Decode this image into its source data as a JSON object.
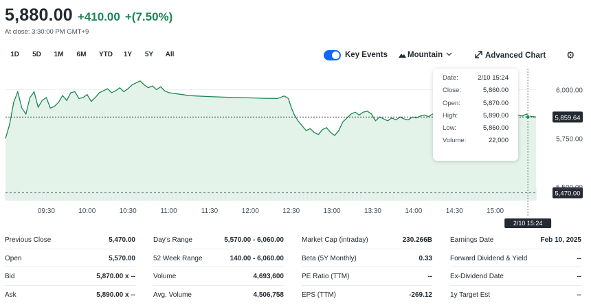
{
  "quote": {
    "price": "5,880.00",
    "change": "+410.00",
    "change_pct": "+(7.50%)",
    "close_time": "At close: 3:30:00 PM GMT+9"
  },
  "ranges": [
    {
      "label": "1D",
      "active": true
    },
    {
      "label": "5D",
      "active": false
    },
    {
      "label": "1M",
      "active": false
    },
    {
      "label": "6M",
      "active": false
    },
    {
      "label": "YTD",
      "active": false
    },
    {
      "label": "1Y",
      "active": false
    },
    {
      "label": "5Y",
      "active": false
    },
    {
      "label": "All",
      "active": false
    }
  ],
  "controls": {
    "key_events_label": "Key Events",
    "key_events_on": true,
    "chart_style_label": "Mountain",
    "advanced_chart_label": "Advanced Chart"
  },
  "colors": {
    "up": "#1b8553",
    "line": "#1b8553",
    "fill": "#e3f3ea",
    "accent": "#0f69ff",
    "crosshair": "#d0352d"
  },
  "chart_data": {
    "type": "area",
    "x_ticks": [
      "09:30",
      "10:00",
      "10:30",
      "11:00",
      "11:30",
      "12:00",
      "12:30",
      "13:00",
      "13:30",
      "14:00",
      "14:30",
      "15:00"
    ],
    "y_ticks": [
      "6,000.00",
      "5,750.00",
      "5,500.00"
    ],
    "y_range": [
      5430,
      6080
    ],
    "x_range_minutes": [
      0,
      390
    ],
    "previous_close": 5470,
    "previous_close_label": "5,470.00",
    "crosshair_value": 5859.64,
    "crosshair_value_label": "5,859.64",
    "crosshair_time_label": "2/10 15:24",
    "points": [
      [
        0,
        5750
      ],
      [
        3,
        5820
      ],
      [
        6,
        5935
      ],
      [
        9,
        5990
      ],
      [
        12,
        5905
      ],
      [
        15,
        5875
      ],
      [
        18,
        5960
      ],
      [
        21,
        5990
      ],
      [
        24,
        5910
      ],
      [
        27,
        5945
      ],
      [
        30,
        5960
      ],
      [
        33,
        5905
      ],
      [
        36,
        5915
      ],
      [
        39,
        5935
      ],
      [
        42,
        5970
      ],
      [
        45,
        5945
      ],
      [
        48,
        5985
      ],
      [
        51,
        5990
      ],
      [
        54,
        5955
      ],
      [
        57,
        5960
      ],
      [
        60,
        5975
      ],
      [
        63,
        5940
      ],
      [
        66,
        5960
      ],
      [
        69,
        5985
      ],
      [
        72,
        5995
      ],
      [
        75,
        6005
      ],
      [
        78,
        5985
      ],
      [
        81,
        5995
      ],
      [
        84,
        6010
      ],
      [
        87,
        5990
      ],
      [
        90,
        6005
      ],
      [
        93,
        6025
      ],
      [
        96,
        6035
      ],
      [
        99,
        6045
      ],
      [
        102,
        6025
      ],
      [
        105,
        6010
      ],
      [
        108,
        6020
      ],
      [
        111,
        6000
      ],
      [
        114,
        6015
      ],
      [
        117,
        5995
      ],
      [
        120,
        5985
      ],
      [
        125,
        5980
      ],
      [
        130,
        5975
      ],
      [
        135,
        5970
      ],
      [
        140,
        5968
      ],
      [
        150,
        5965
      ],
      [
        160,
        5962
      ],
      [
        170,
        5960
      ],
      [
        180,
        5958
      ],
      [
        190,
        5956
      ],
      [
        200,
        5955
      ],
      [
        205,
        5968
      ],
      [
        208,
        5955
      ],
      [
        210,
        5910
      ],
      [
        212,
        5875
      ],
      [
        215,
        5840
      ],
      [
        218,
        5815
      ],
      [
        221,
        5790
      ],
      [
        224,
        5800
      ],
      [
        227,
        5780
      ],
      [
        230,
        5770
      ],
      [
        233,
        5795
      ],
      [
        236,
        5805
      ],
      [
        239,
        5780
      ],
      [
        242,
        5765
      ],
      [
        245,
        5790
      ],
      [
        248,
        5835
      ],
      [
        251,
        5855
      ],
      [
        254,
        5875
      ],
      [
        257,
        5885
      ],
      [
        260,
        5870
      ],
      [
        263,
        5885
      ],
      [
        266,
        5890
      ],
      [
        269,
        5875
      ],
      [
        272,
        5840
      ],
      [
        275,
        5860
      ],
      [
        278,
        5850
      ],
      [
        281,
        5840
      ],
      [
        284,
        5855
      ],
      [
        287,
        5845
      ],
      [
        290,
        5860
      ],
      [
        293,
        5850
      ],
      [
        296,
        5845
      ],
      [
        299,
        5860
      ],
      [
        302,
        5855
      ],
      [
        305,
        5865
      ],
      [
        308,
        5870
      ],
      [
        311,
        5862
      ],
      [
        314,
        5875
      ],
      [
        317,
        5880
      ],
      [
        320,
        5878
      ],
      [
        323,
        5890
      ],
      [
        326,
        5880
      ],
      [
        329,
        5892
      ],
      [
        332,
        5898
      ],
      [
        335,
        5890
      ],
      [
        338,
        5895
      ],
      [
        341,
        5905
      ],
      [
        344,
        5900
      ],
      [
        347,
        5885
      ],
      [
        350,
        5878
      ],
      [
        353,
        5883
      ],
      [
        356,
        5890
      ],
      [
        359,
        5895
      ],
      [
        362,
        5888
      ],
      [
        365,
        5878
      ],
      [
        368,
        5884
      ],
      [
        371,
        5880
      ],
      [
        374,
        5872
      ],
      [
        377,
        5868
      ],
      [
        380,
        5865
      ],
      [
        383,
        5875
      ],
      [
        385,
        5866
      ],
      [
        387,
        5862
      ],
      [
        390,
        5860
      ]
    ]
  },
  "tooltip": {
    "rows": [
      {
        "key": "Date:",
        "value": "2/10 15:24"
      },
      {
        "key": "Close:",
        "value": "5,860.00"
      },
      {
        "key": "Open:",
        "value": "5,870.00"
      },
      {
        "key": "High:",
        "value": "5,890.00"
      },
      {
        "key": "Low:",
        "value": "5,860.00"
      },
      {
        "key": "Volume:",
        "value": "22,000"
      }
    ]
  },
  "stats": [
    [
      {
        "label": "Previous Close",
        "value": "5,470.00"
      },
      {
        "label": "Open",
        "value": "5,570.00"
      },
      {
        "label": "Bid",
        "value": "5,870.00 x --"
      },
      {
        "label": "Ask",
        "value": "5,890.00 x --"
      }
    ],
    [
      {
        "label": "Day's Range",
        "value": "5,570.00 - 6,060.00"
      },
      {
        "label": "52 Week Range",
        "value": "140.00 - 6,060.00"
      },
      {
        "label": "Volume",
        "value": "4,693,600"
      },
      {
        "label": "Avg. Volume",
        "value": "4,506,758"
      }
    ],
    [
      {
        "label": "Market Cap (intraday)",
        "value": "230.266B"
      },
      {
        "label": "Beta (5Y Monthly)",
        "value": "0.33"
      },
      {
        "label": "PE Ratio (TTM)",
        "value": "--"
      },
      {
        "label": "EPS (TTM)",
        "value": "-269.12"
      }
    ],
    [
      {
        "label": "Earnings Date",
        "value": "Feb 10, 2025"
      },
      {
        "label": "Forward Dividend & Yield",
        "value": "--"
      },
      {
        "label": "Ex-Dividend Date",
        "value": "--"
      },
      {
        "label": "1y Target Est",
        "value": "--"
      }
    ]
  ]
}
